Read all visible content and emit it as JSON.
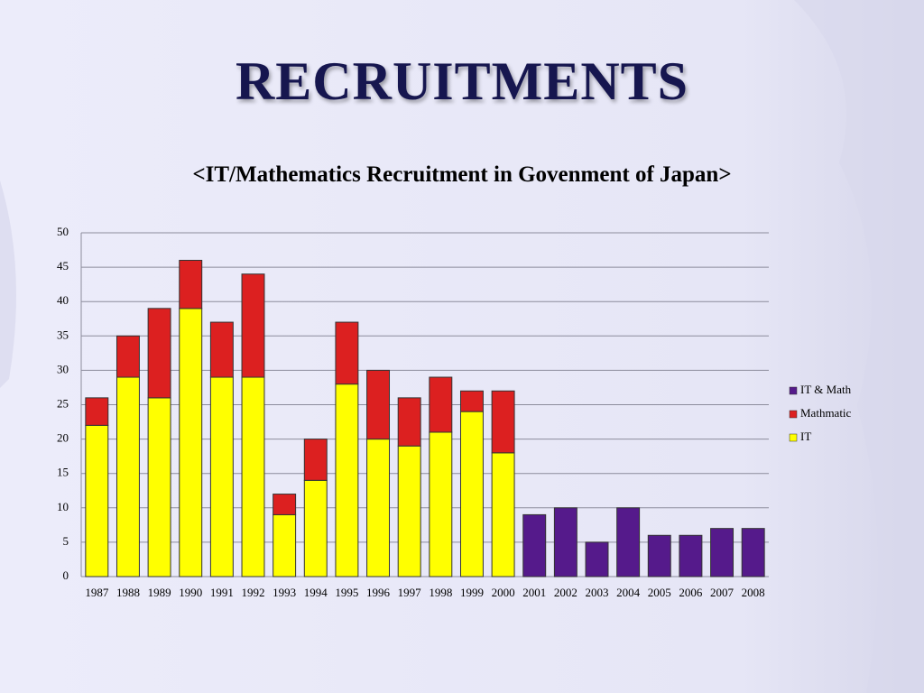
{
  "slide_title": "RECRUITMENTS",
  "chart_data": {
    "type": "stacked_bar",
    "title": "<IT/Mathematics Recruitment in Govenment of Japan>",
    "categories": [
      "1987",
      "1988",
      "1989",
      "1990",
      "1991",
      "1992",
      "1993",
      "1994",
      "1995",
      "1996",
      "1997",
      "1998",
      "1999",
      "2000",
      "2001",
      "2002",
      "2003",
      "2004",
      "2005",
      "2006",
      "2007",
      "2008"
    ],
    "series": [
      {
        "name": "IT",
        "color": "#ffff00",
        "values": [
          22,
          29,
          26,
          39,
          29,
          29,
          9,
          14,
          28,
          20,
          19,
          21,
          24,
          18,
          null,
          null,
          null,
          null,
          null,
          null,
          null,
          null
        ]
      },
      {
        "name": "Mathmatic",
        "color": "#dc2020",
        "values": [
          4,
          6,
          13,
          7,
          8,
          15,
          3,
          6,
          9,
          10,
          7,
          8,
          3,
          9,
          null,
          null,
          null,
          null,
          null,
          null,
          null,
          null
        ]
      },
      {
        "name": "IT & Math",
        "color": "#551a8b",
        "values": [
          null,
          null,
          null,
          null,
          null,
          null,
          null,
          null,
          null,
          null,
          null,
          null,
          null,
          null,
          9,
          10,
          5,
          10,
          6,
          6,
          7,
          7
        ]
      }
    ],
    "ylim": [
      0,
      50
    ],
    "yticks": [
      0,
      5,
      10,
      15,
      20,
      25,
      30,
      35,
      40,
      45,
      50
    ],
    "grid": true,
    "legend": "right"
  }
}
